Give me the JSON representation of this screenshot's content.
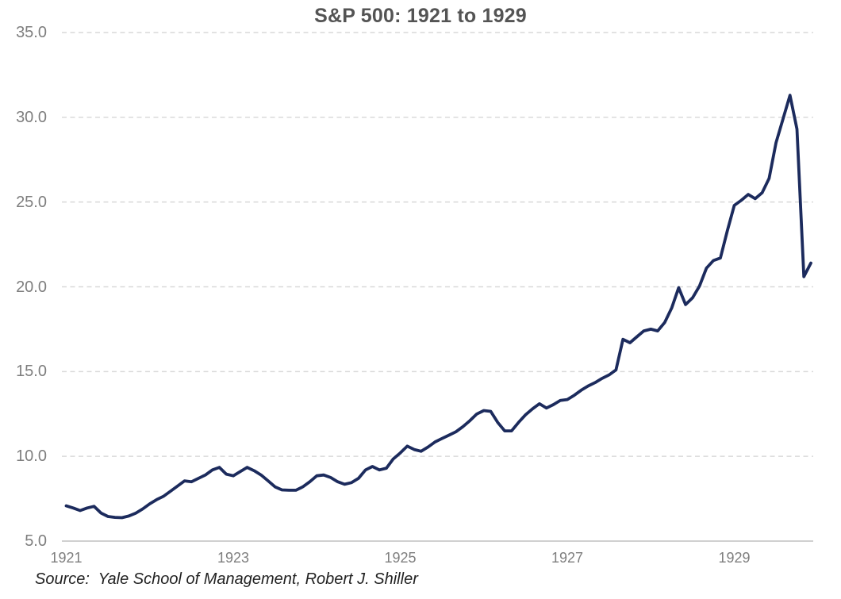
{
  "colors": {
    "line": "#1c2b5d",
    "grid": "#d9d9d9",
    "axis": "#c0c0c0",
    "title_text": "#545454",
    "tick_text": "#7e7e7e",
    "source_text": "#222222"
  },
  "chart_data": {
    "type": "line",
    "title": "S&P 500: 1921 to 1929",
    "source": "Source:  Yale School of Management, Robert J. Shiller",
    "xlabel": "",
    "ylabel": "",
    "x_start": "1921-01",
    "x_end": "1929-12",
    "x_frequency": "monthly",
    "x_start_year": 1921,
    "x_ticks": [
      1921,
      1923,
      1925,
      1927,
      1929
    ],
    "x_tick_labels": [
      "1921",
      "1923",
      "1925",
      "1927",
      "1929"
    ],
    "y_ticks": [
      5.0,
      10.0,
      15.0,
      20.0,
      25.0,
      30.0,
      35.0
    ],
    "y_tick_labels": [
      "5.0",
      "10.0",
      "15.0",
      "20.0",
      "25.0",
      "30.0",
      "35.0"
    ],
    "ylim": [
      5.0,
      35.0
    ],
    "grid": "horizontal-dashed",
    "legend": "none",
    "series": [
      {
        "name": "S&P 500",
        "values": [
          7.08,
          6.95,
          6.8,
          6.95,
          7.05,
          6.65,
          6.45,
          6.4,
          6.38,
          6.48,
          6.65,
          6.9,
          7.2,
          7.45,
          7.65,
          7.95,
          8.25,
          8.55,
          8.5,
          8.7,
          8.9,
          9.2,
          9.35,
          8.95,
          8.85,
          9.1,
          9.35,
          9.15,
          8.9,
          8.55,
          8.2,
          8.02,
          8.0,
          8.0,
          8.2,
          8.5,
          8.85,
          8.9,
          8.75,
          8.5,
          8.35,
          8.45,
          8.7,
          9.2,
          9.4,
          9.2,
          9.3,
          9.85,
          10.2,
          10.6,
          10.4,
          10.3,
          10.55,
          10.85,
          11.05,
          11.25,
          11.45,
          11.75,
          12.1,
          12.5,
          12.7,
          12.65,
          12.0,
          11.5,
          11.5,
          12.0,
          12.45,
          12.8,
          13.1,
          12.85,
          13.05,
          13.3,
          13.35,
          13.6,
          13.9,
          14.15,
          14.35,
          14.6,
          14.8,
          15.1,
          16.9,
          16.7,
          17.05,
          17.4,
          17.5,
          17.4,
          17.9,
          18.75,
          19.95,
          18.95,
          19.35,
          20.05,
          21.1,
          21.55,
          21.7,
          23.3,
          24.8,
          25.1,
          25.45,
          25.2,
          25.55,
          26.4,
          28.5,
          29.9,
          31.3,
          29.3,
          20.6,
          21.4
        ]
      }
    ]
  }
}
